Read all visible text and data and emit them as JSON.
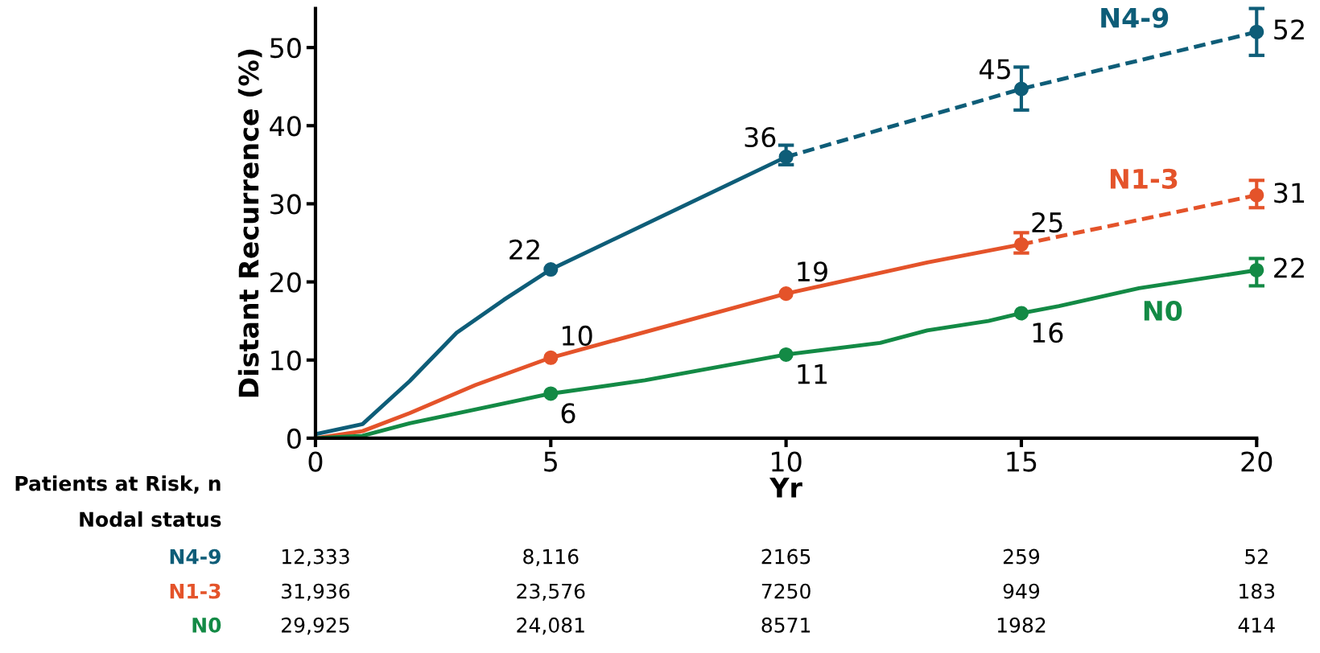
{
  "chart_data": {
    "type": "line",
    "xlabel": "Yr",
    "ylabel": "Distant Recurrence (%)",
    "xlim": [
      0,
      20
    ],
    "xticks": [
      0,
      5,
      10,
      15,
      20
    ],
    "ylim": [
      0,
      55
    ],
    "yticks": [
      0,
      10,
      20,
      30,
      40,
      50
    ],
    "grid": false,
    "legend": false,
    "marker": "none",
    "series": [
      {
        "name": "N4-9",
        "color": "#0e5d78",
        "line_style": "solid",
        "x": [
          0,
          1,
          2,
          3,
          4,
          5,
          10
        ],
        "values": [
          0.5,
          1.8,
          7.3,
          13.5,
          17.7,
          21.6,
          36
        ]
      },
      {
        "color": "#0e5d78",
        "line_style": "dashed",
        "x": [
          10,
          15,
          20
        ],
        "values": [
          36,
          44.7,
          52
        ]
      },
      {
        "type": "scatter",
        "marker": "circle",
        "color": "#0e5d78",
        "x": [
          5,
          10,
          15,
          20
        ],
        "values": [
          21.6,
          36,
          44.7,
          52
        ],
        "errors": [
          null,
          [
            35,
            37.5
          ],
          [
            42,
            47.5
          ],
          [
            49,
            55
          ]
        ],
        "value_labels": [
          "22",
          "36",
          "45",
          "52"
        ]
      },
      {
        "name": "N1-3",
        "color": "#e4532a",
        "line_style": "solid",
        "x": [
          0,
          1,
          2,
          3.4,
          5,
          10,
          13,
          15
        ],
        "values": [
          0,
          0.9,
          3.2,
          6.8,
          10.3,
          18.5,
          22.5,
          24.8
        ]
      },
      {
        "color": "#e4532a",
        "line_style": "dashed",
        "x": [
          15,
          20
        ],
        "values": [
          24.8,
          31.1
        ]
      },
      {
        "type": "scatter",
        "marker": "circle",
        "color": "#e4532a",
        "x": [
          5,
          10,
          15,
          20
        ],
        "values": [
          10.3,
          18.5,
          24.8,
          31.1
        ],
        "errors": [
          null,
          null,
          [
            23.7,
            26.3
          ],
          [
            29.5,
            33
          ]
        ],
        "value_labels": [
          "10",
          "19",
          "25",
          "31"
        ]
      },
      {
        "name": "N0",
        "color": "#138a45",
        "line_style": "solid",
        "x": [
          0,
          1,
          2,
          5,
          7,
          10,
          12,
          13,
          14.3,
          15,
          15.8,
          17.5,
          20
        ],
        "values": [
          0,
          0.3,
          1.9,
          5.7,
          7.4,
          10.7,
          12.2,
          13.8,
          15,
          16,
          16.9,
          19.2,
          21.5
        ]
      },
      {
        "type": "scatter",
        "marker": "circle",
        "color": "#138a45",
        "x": [
          5,
          10,
          15,
          20
        ],
        "values": [
          5.7,
          10.7,
          16,
          21.5
        ],
        "errors": [
          null,
          null,
          null,
          [
            19.5,
            23
          ]
        ],
        "value_labels": [
          "6",
          "11",
          "16",
          "22"
        ]
      }
    ],
    "annotations": [
      "Patients at Risk, n",
      "Nodal status",
      "N4-9",
      "12,333",
      "8,116",
      "2165",
      "259",
      "52",
      "N1-3",
      "31,936",
      "23,576",
      "7250",
      "949",
      "183",
      "N0",
      "29,925",
      "24,081",
      "8571",
      "1982",
      "414"
    ]
  }
}
